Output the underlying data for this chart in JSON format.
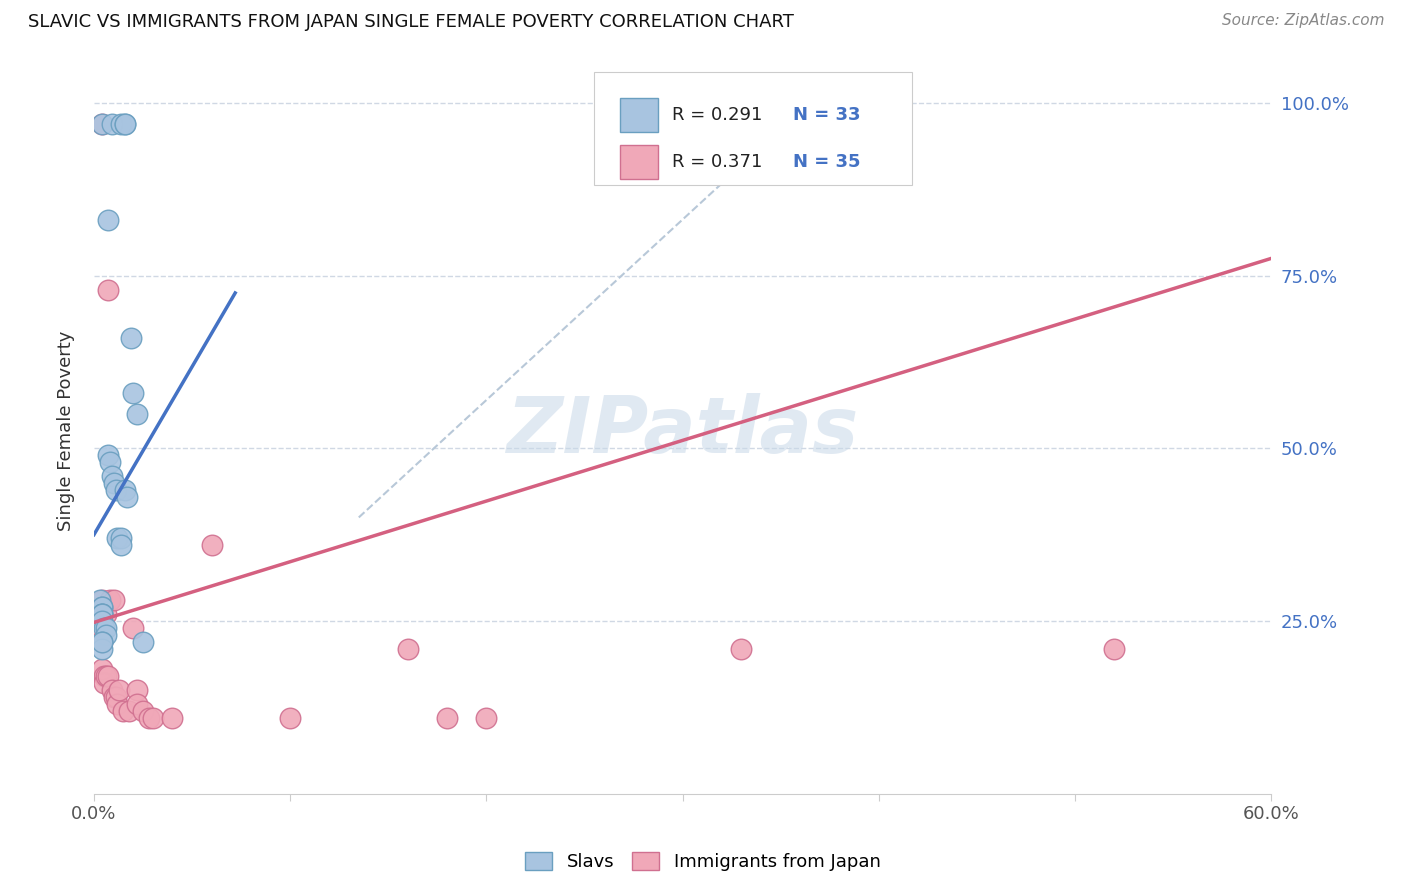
{
  "title": "SLAVIC VS IMMIGRANTS FROM JAPAN SINGLE FEMALE POVERTY CORRELATION CHART",
  "source": "Source: ZipAtlas.com",
  "ylabel": "Single Female Poverty",
  "watermark": "ZIPatlas",
  "legend_label_blue": "Slavs",
  "legend_label_pink": "Immigrants from Japan",
  "xlim": [
    0.0,
    0.6
  ],
  "ylim": [
    0.0,
    1.05
  ],
  "blue_color": "#a8c4e0",
  "blue_edge": "#6a9fc0",
  "pink_color": "#f0a8b8",
  "pink_edge": "#d07090",
  "blue_line_color": "#4472c4",
  "pink_line_color": "#d46080",
  "diagonal_color": "#b8c8d8",
  "grid_color": "#d0d8e4",
  "background_color": "#ffffff",
  "blue_line_x0": 0.0,
  "blue_line_y0": 0.375,
  "blue_line_x1": 0.072,
  "blue_line_y1": 0.725,
  "pink_line_x0": 0.0,
  "pink_line_y0": 0.248,
  "pink_line_x1": 0.6,
  "pink_line_y1": 0.775,
  "gray_line_x0": 0.135,
  "gray_line_y0": 0.4,
  "gray_line_x1": 0.355,
  "gray_line_y1": 0.975,
  "slavs_x": [
    0.004,
    0.009,
    0.014,
    0.016,
    0.016,
    0.003,
    0.004,
    0.004,
    0.004,
    0.004,
    0.004,
    0.004,
    0.005,
    0.006,
    0.006,
    0.007,
    0.007,
    0.008,
    0.009,
    0.01,
    0.011,
    0.012,
    0.014,
    0.014,
    0.016,
    0.017,
    0.019,
    0.02,
    0.022,
    0.025,
    0.004,
    0.004,
    0.004
  ],
  "slavs_y": [
    0.97,
    0.97,
    0.97,
    0.97,
    0.97,
    0.28,
    0.27,
    0.27,
    0.26,
    0.26,
    0.26,
    0.25,
    0.24,
    0.24,
    0.23,
    0.83,
    0.49,
    0.48,
    0.46,
    0.45,
    0.44,
    0.37,
    0.37,
    0.36,
    0.44,
    0.43,
    0.66,
    0.58,
    0.55,
    0.22,
    0.22,
    0.21,
    0.22
  ],
  "japan_x": [
    0.004,
    0.004,
    0.004,
    0.004,
    0.004,
    0.005,
    0.005,
    0.006,
    0.006,
    0.007,
    0.007,
    0.008,
    0.009,
    0.01,
    0.01,
    0.011,
    0.012,
    0.013,
    0.015,
    0.018,
    0.02,
    0.022,
    0.022,
    0.025,
    0.028,
    0.03,
    0.04,
    0.06,
    0.1,
    0.16,
    0.18,
    0.2,
    0.33,
    0.52,
    0.004
  ],
  "japan_y": [
    0.28,
    0.26,
    0.24,
    0.22,
    0.18,
    0.17,
    0.16,
    0.26,
    0.17,
    0.73,
    0.17,
    0.28,
    0.15,
    0.28,
    0.14,
    0.14,
    0.13,
    0.15,
    0.12,
    0.12,
    0.24,
    0.15,
    0.13,
    0.12,
    0.11,
    0.11,
    0.11,
    0.36,
    0.11,
    0.21,
    0.11,
    0.11,
    0.21,
    0.21,
    0.97
  ]
}
